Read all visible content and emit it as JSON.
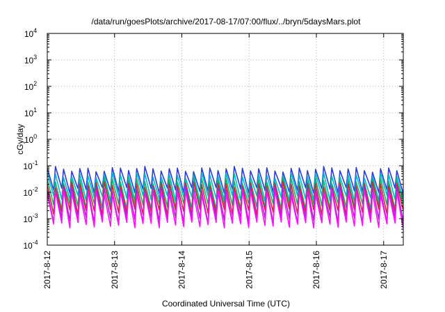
{
  "chart_data": {
    "type": "line",
    "title": "/data/run/goesPlots/archive/2017-08-17/07:00/flux/../bryn/5daysMars.plot",
    "xlabel": "Coordinated Universal Time (UTC)",
    "ylabel": "cGy/day",
    "yscale": "log",
    "ylim": [
      0.0001,
      10000
    ],
    "xlim": [
      "2017-08-12T00:00",
      "2017-08-17T07:00"
    ],
    "x_ticks": [
      "2017-8-12",
      "2017-8-13",
      "2017-8-14",
      "2017-8-15",
      "2017-8-16",
      "2017-8-17"
    ],
    "y_ticks": [
      {
        "base": "10",
        "exp": "-4"
      },
      {
        "base": "10",
        "exp": "-3"
      },
      {
        "base": "10",
        "exp": "-2"
      },
      {
        "base": "10",
        "exp": "-1"
      },
      {
        "base": "10",
        "exp": "0"
      },
      {
        "base": "10",
        "exp": "1"
      },
      {
        "base": "10",
        "exp": "2"
      },
      {
        "base": "10",
        "exp": "3"
      },
      {
        "base": "10",
        "exp": "4"
      }
    ],
    "grid": true,
    "legend": "none",
    "cycle_hours": 2.9,
    "series": [
      {
        "color": "#2a3bd8",
        "peak": 0.075,
        "trough": 0.012
      },
      {
        "color": "#00b8c8",
        "peak": 0.045,
        "trough": 0.006
      },
      {
        "color": "#18b070",
        "peak": 0.028,
        "trough": 0.003
      },
      {
        "color": "#d02828",
        "peak": 0.02,
        "trough": 0.0018
      },
      {
        "color": "#b020d8",
        "peak": 0.014,
        "trough": 0.0009
      },
      {
        "color": "#ff10ff",
        "peak": 0.01,
        "trough": 0.0006
      }
    ]
  }
}
